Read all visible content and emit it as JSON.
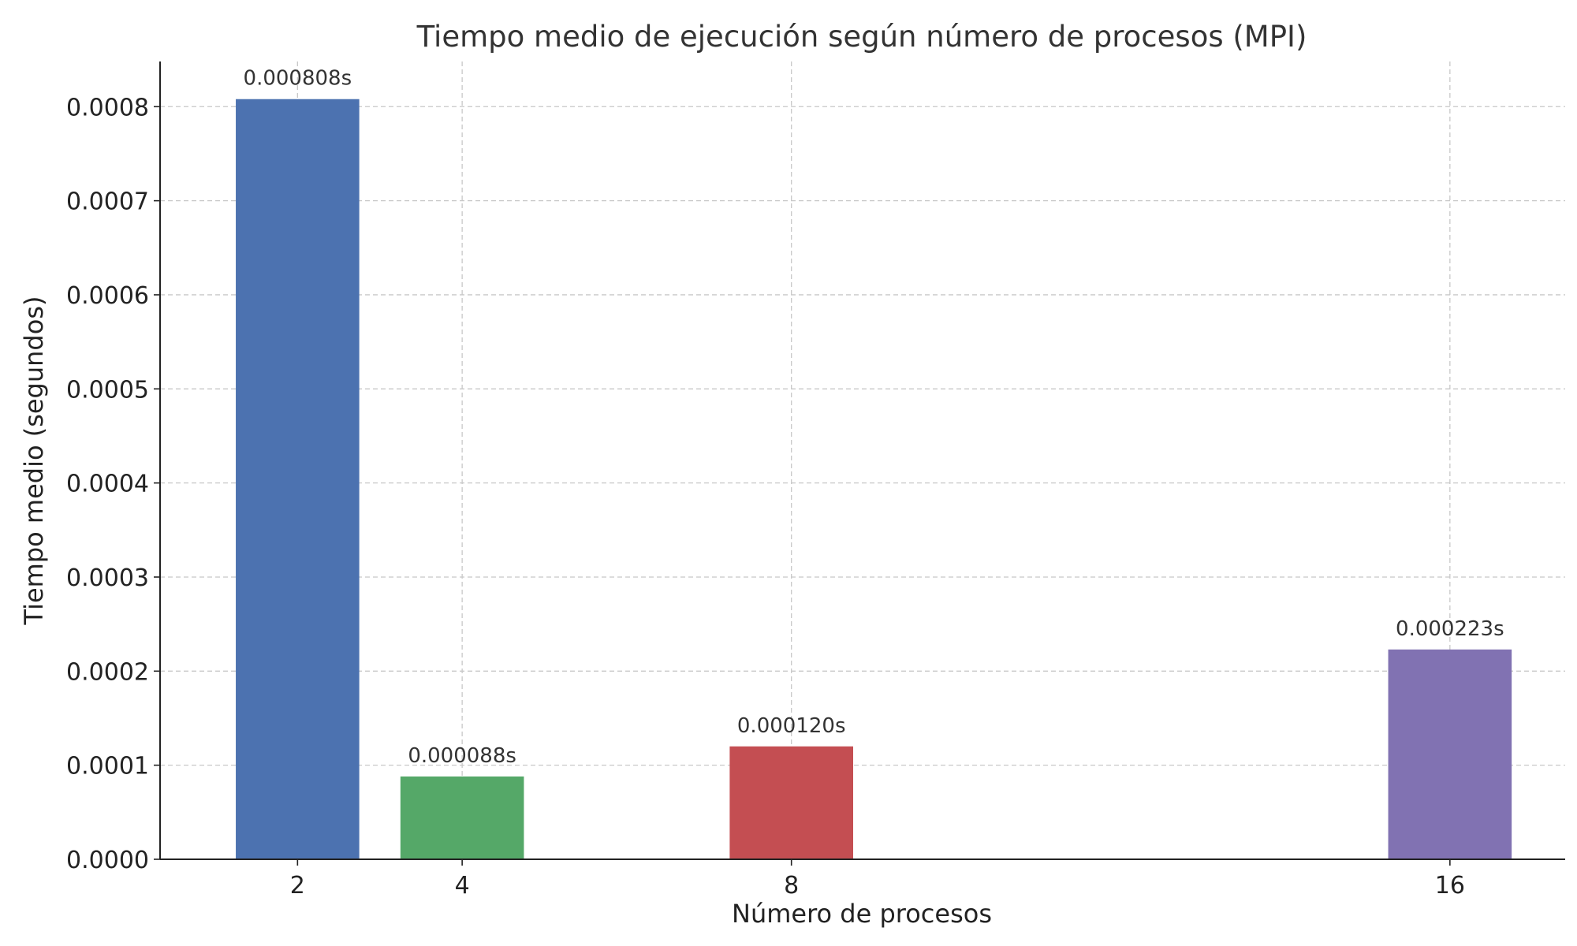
{
  "chart_data": {
    "type": "bar",
    "title": "Tiempo medio de ejecución según número de procesos (MPI)",
    "xlabel": "Número de procesos",
    "ylabel": "Tiempo medio (segundos)",
    "x": [
      2,
      4,
      8,
      16
    ],
    "x_ticks": [
      2,
      4,
      8,
      16
    ],
    "x_tick_labels": [
      "2",
      "4",
      "8",
      "16"
    ],
    "values": [
      0.000808,
      8.8e-05,
      0.00012,
      0.000223
    ],
    "data_labels": [
      "0.000808s",
      "0.000088s",
      "0.000120s",
      "0.000223s"
    ],
    "colors": [
      "#4c72b0",
      "#55a868",
      "#c44e52",
      "#8172b2"
    ],
    "xlim": [
      0.33,
      17.4
    ],
    "ylim": [
      0,
      0.000848
    ],
    "y_ticks": [
      0,
      0.0001,
      0.0002,
      0.0003,
      0.0004,
      0.0005,
      0.0006,
      0.0007,
      0.0008
    ],
    "y_tick_labels": [
      "0.0000",
      "0.0001",
      "0.0002",
      "0.0003",
      "0.0004",
      "0.0005",
      "0.0006",
      "0.0007",
      "0.0008"
    ],
    "bar_width": 1.5,
    "grid": true,
    "legend": "none"
  }
}
